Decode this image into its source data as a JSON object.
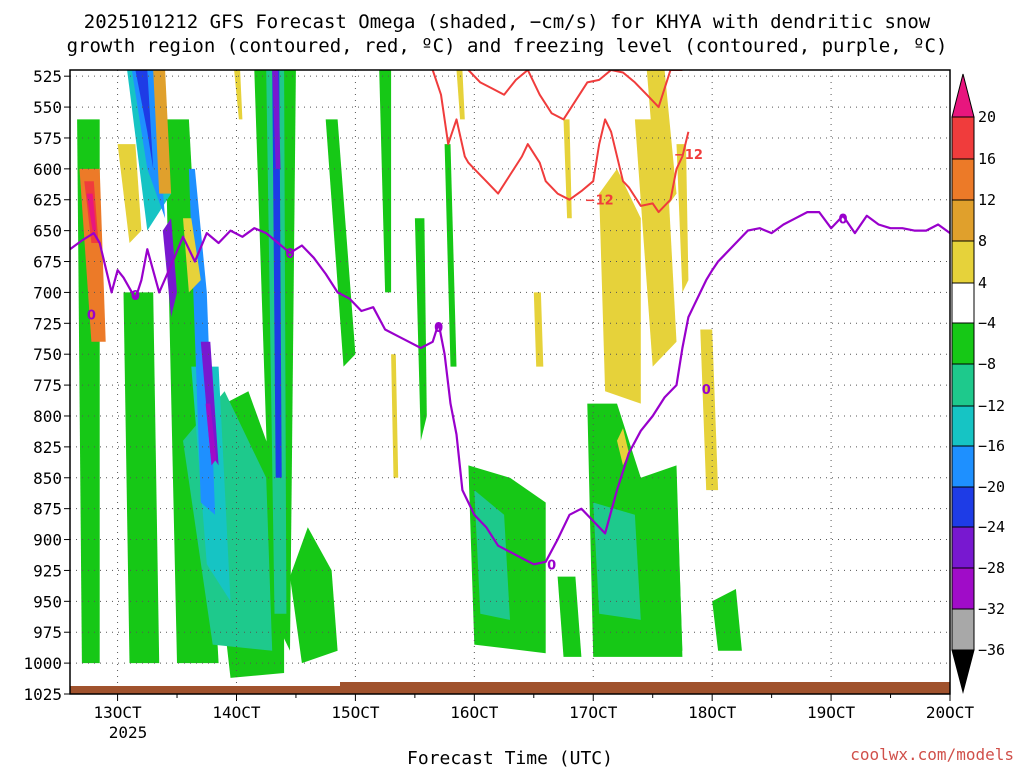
{
  "chart_data": {
    "type": "heatmap",
    "title_line1": "2025101212 GFS Forecast Omega (shaded, −cm/s) for KHYA with dendritic snow",
    "title_line2": "growth region (contoured, red, ºC) and freezing level (contoured, purple, ºC)",
    "xlabel": "Forecast Time (UTC)",
    "credit": "coolwx.com/models",
    "x_ticks": [
      "13OCT",
      "14OCT",
      "15OCT",
      "16OCT",
      "17OCT",
      "18OCT",
      "19OCT",
      "20OCT"
    ],
    "x_tick_year": "2025",
    "x_range_days": [
      12.6,
      20.0
    ],
    "y_ticks": [
      "525",
      "550",
      "575",
      "600",
      "625",
      "650",
      "675",
      "700",
      "725",
      "750",
      "775",
      "800",
      "825",
      "850",
      "875",
      "900",
      "925",
      "950",
      "975",
      "1000",
      "1025"
    ],
    "y_range_hpa": [
      1025,
      520
    ],
    "colorbar": {
      "labels": [
        "20",
        "16",
        "12",
        "8",
        "4",
        "−4",
        "−8",
        "−12",
        "−16",
        "−20",
        "−24",
        "−28",
        "−32",
        "−36"
      ],
      "colors": [
        "#e8167e",
        "#f03c3c",
        "#ec7a28",
        "#e0a02c",
        "#e6d23a",
        "#ffffff",
        "#16c816",
        "#1ec98c",
        "#16c4c4",
        "#1e90ff",
        "#1e3ce6",
        "#7818d0",
        "#a00cc8",
        "#a8a8a8",
        "#000000"
      ]
    },
    "freezing_level": {
      "color": "#9900cc",
      "label": "0",
      "x": [
        12.6,
        12.7,
        12.8,
        12.85,
        12.95,
        13.0,
        13.05,
        13.15,
        13.2,
        13.25,
        13.35,
        13.45,
        13.55,
        13.65,
        13.75,
        13.85,
        13.95,
        14.05,
        14.15,
        14.25,
        14.35,
        14.45,
        14.55,
        14.65,
        14.75,
        14.85,
        14.95,
        15.05,
        15.15,
        15.25,
        15.35,
        15.45,
        15.55,
        15.65,
        15.7,
        15.75,
        15.8,
        15.85,
        15.9,
        15.95,
        16.0,
        16.1,
        16.2,
        16.3,
        16.4,
        16.5,
        16.6,
        16.7,
        16.8,
        16.9,
        17.0,
        17.1,
        17.2,
        17.3,
        17.4,
        17.5,
        17.6,
        17.7,
        17.75,
        17.8,
        17.85,
        17.9,
        17.95,
        18.0,
        18.05,
        18.1,
        18.2,
        18.3,
        18.4,
        18.5,
        18.6,
        18.7,
        18.8,
        18.9,
        19.0,
        19.1,
        19.2,
        19.3,
        19.4,
        19.5,
        19.6,
        19.7,
        19.8,
        19.9,
        20.0
      ],
      "y": [
        665,
        658,
        652,
        660,
        700,
        682,
        688,
        705,
        690,
        665,
        700,
        678,
        655,
        675,
        652,
        660,
        650,
        655,
        648,
        652,
        660,
        668,
        662,
        672,
        685,
        700,
        705,
        715,
        712,
        730,
        735,
        740,
        745,
        740,
        725,
        750,
        790,
        815,
        860,
        870,
        880,
        890,
        905,
        910,
        915,
        920,
        918,
        900,
        880,
        875,
        885,
        895,
        860,
        830,
        812,
        800,
        785,
        775,
        745,
        720,
        710,
        700,
        690,
        682,
        675,
        670,
        660,
        650,
        648,
        652,
        645,
        640,
        635,
        635,
        648,
        638,
        652,
        638,
        645,
        648,
        648,
        650,
        650,
        645,
        652
      ]
    },
    "dendritic_region": {
      "color": "#f03c3c",
      "label": "−12",
      "segments": [
        {
          "x": [
            15.65,
            15.72,
            15.78,
            15.85,
            15.92,
            15.95,
            16.0,
            16.1,
            16.2,
            16.3,
            16.4,
            16.45,
            16.55,
            16.6,
            16.7,
            16.8,
            16.9,
            17.0,
            17.05,
            17.1,
            17.15,
            17.25,
            17.3,
            17.4,
            17.5,
            17.55,
            17.65,
            17.7,
            17.75,
            17.8
          ],
          "y": [
            520,
            540,
            580,
            560,
            590,
            595,
            600,
            610,
            620,
            605,
            590,
            580,
            595,
            610,
            620,
            625,
            618,
            610,
            580,
            560,
            570,
            610,
            615,
            630,
            628,
            635,
            625,
            600,
            590,
            570
          ]
        },
        {
          "x": [
            15.95,
            16.05,
            16.15,
            16.25,
            16.35,
            16.45,
            16.55,
            16.65,
            16.75,
            16.85,
            16.95,
            17.05,
            17.15,
            17.25,
            17.35,
            17.45,
            17.55,
            17.65,
            17.7,
            17.75
          ],
          "y": [
            520,
            530,
            535,
            540,
            528,
            520,
            540,
            555,
            560,
            545,
            530,
            528,
            520,
            522,
            530,
            540,
            550,
            520,
            520,
            520
          ]
        }
      ]
    }
  }
}
